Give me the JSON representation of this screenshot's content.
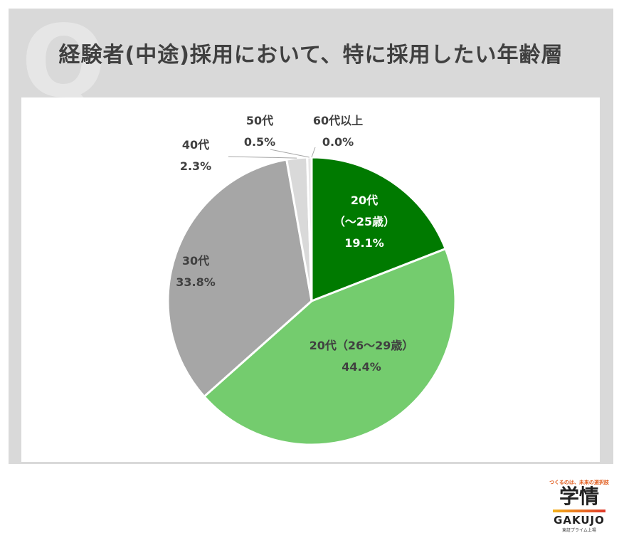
{
  "page": {
    "watermark": "Q",
    "title": "経験者(中途)採用において、特に採用したい年齢層"
  },
  "logo": {
    "tagline": "つくるのは、未来の選択肢",
    "name_kanji": "学情",
    "name_en": "GAKUJO",
    "sub": "東証プライム上場"
  },
  "colors": {
    "under25": "#007a00",
    "age26_29": "#74cc6e",
    "age30s": "#a6a6a6",
    "age40s": "#d9d9d9",
    "age50s": "#e7e6e6",
    "age60plus": "#f2f2f2"
  },
  "chart_data": {
    "type": "pie",
    "title": "経験者(中途)採用において、特に採用したい年齢層",
    "slices": [
      {
        "key": "under25",
        "name": "20代",
        "name2": "（～25歳）",
        "value": 19.1,
        "label": "19.1%"
      },
      {
        "key": "age26_29",
        "name": "20代（26～29歳）",
        "value": 44.4,
        "label": "44.4%"
      },
      {
        "key": "age30s",
        "name": "30代",
        "value": 33.8,
        "label": "33.8%"
      },
      {
        "key": "age40s",
        "name": "40代",
        "value": 2.3,
        "label": "2.3%"
      },
      {
        "key": "age50s",
        "name": "50代",
        "value": 0.5,
        "label": "0.5%"
      },
      {
        "key": "age60plus",
        "name": "60代以上",
        "value": 0.0,
        "label": "0.0%"
      }
    ]
  }
}
